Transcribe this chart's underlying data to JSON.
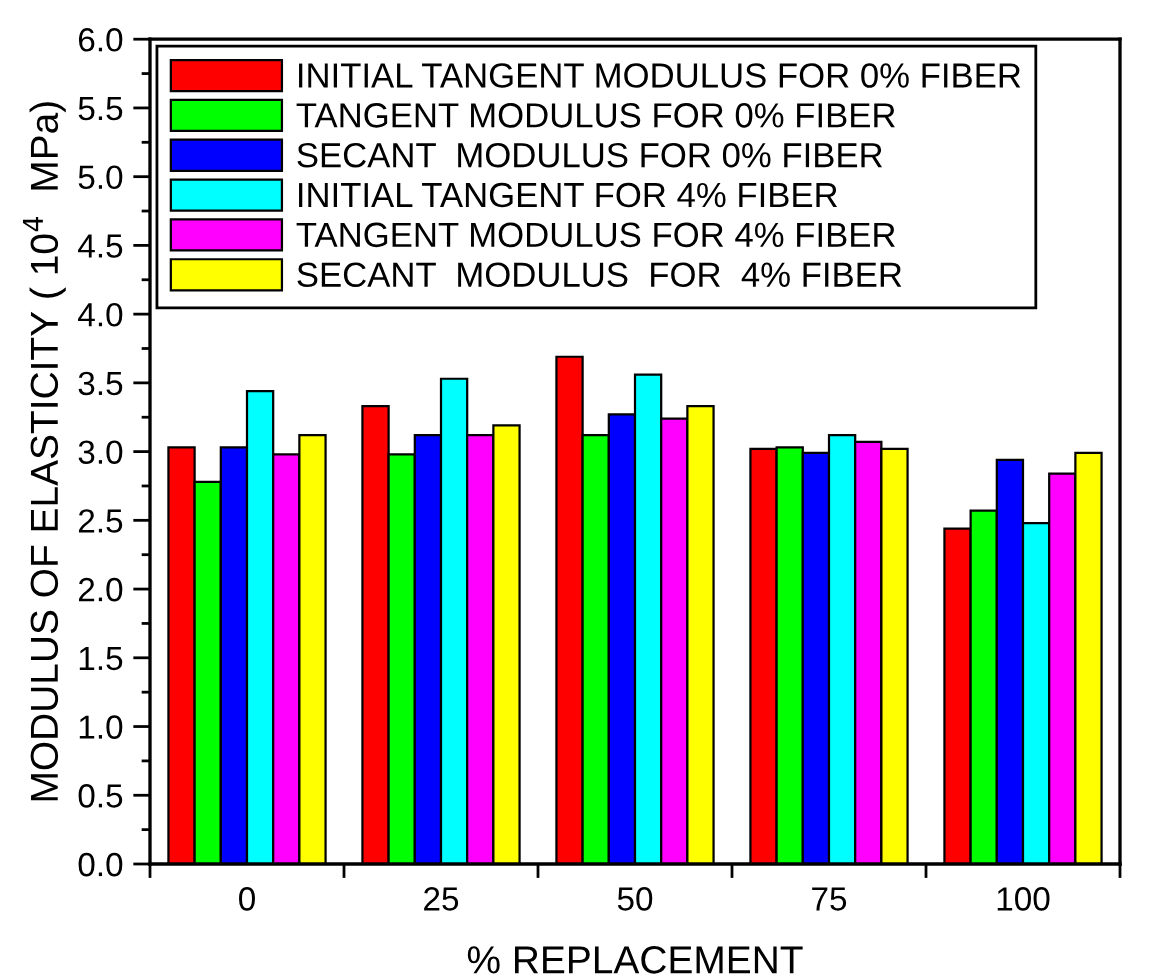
{
  "chart_data": {
    "type": "bar",
    "xlabel": "% REPLACEMENT",
    "ylabel": "MODULUS OF ELASTICITY ( 10$^{4}$  MPa)",
    "categories": [
      "0",
      "25",
      "50",
      "75",
      "100"
    ],
    "series": [
      {
        "name": "INITIAL TANGENT MODULUS FOR 0% FIBER",
        "color": "#ff0000",
        "values": [
          3.03,
          3.33,
          3.69,
          3.02,
          2.44
        ]
      },
      {
        "name": "TANGENT MODULUS FOR 0% FIBER",
        "color": "#00ff00",
        "values": [
          2.78,
          2.98,
          3.12,
          3.03,
          2.57
        ]
      },
      {
        "name": "SECANT  MODULUS FOR 0% FIBER",
        "color": "#0000ff",
        "values": [
          3.03,
          3.12,
          3.27,
          2.99,
          2.94
        ]
      },
      {
        "name": "INITIAL TANGENT FOR 4% FIBER",
        "color": "#00ffff",
        "values": [
          3.44,
          3.53,
          3.56,
          3.12,
          2.48
        ]
      },
      {
        "name": "TANGENT MODULUS FOR 4% FIBER",
        "color": "#ff00ff",
        "values": [
          2.98,
          3.12,
          3.24,
          3.07,
          2.84
        ]
      },
      {
        "name": "SECANT  MODULUS  FOR  4% FIBER",
        "color": "#ffff00",
        "values": [
          3.12,
          3.19,
          3.33,
          3.02,
          2.99
        ]
      }
    ],
    "ylim": [
      0.0,
      6.0
    ],
    "yticks": [
      {
        "value": 0,
        "label": "0.0"
      },
      {
        "value": 0.5,
        "label": "0.5"
      },
      {
        "value": 1,
        "label": "1.0"
      },
      {
        "value": 1.5,
        "label": "1.5"
      },
      {
        "value": 2,
        "label": "2.0"
      },
      {
        "value": 2.5,
        "label": "2.5"
      },
      {
        "value": 3,
        "label": "3.0"
      },
      {
        "value": 3.5,
        "label": "3.5"
      },
      {
        "value": 4,
        "label": "4.0"
      },
      {
        "value": 4.5,
        "label": "4.5"
      },
      {
        "value": 5,
        "label": "5.0"
      },
      {
        "value": 5.5,
        "label": "5.5"
      },
      {
        "value": 6,
        "label": "6.0"
      }
    ],
    "legend": "top left",
    "grid": false
  }
}
